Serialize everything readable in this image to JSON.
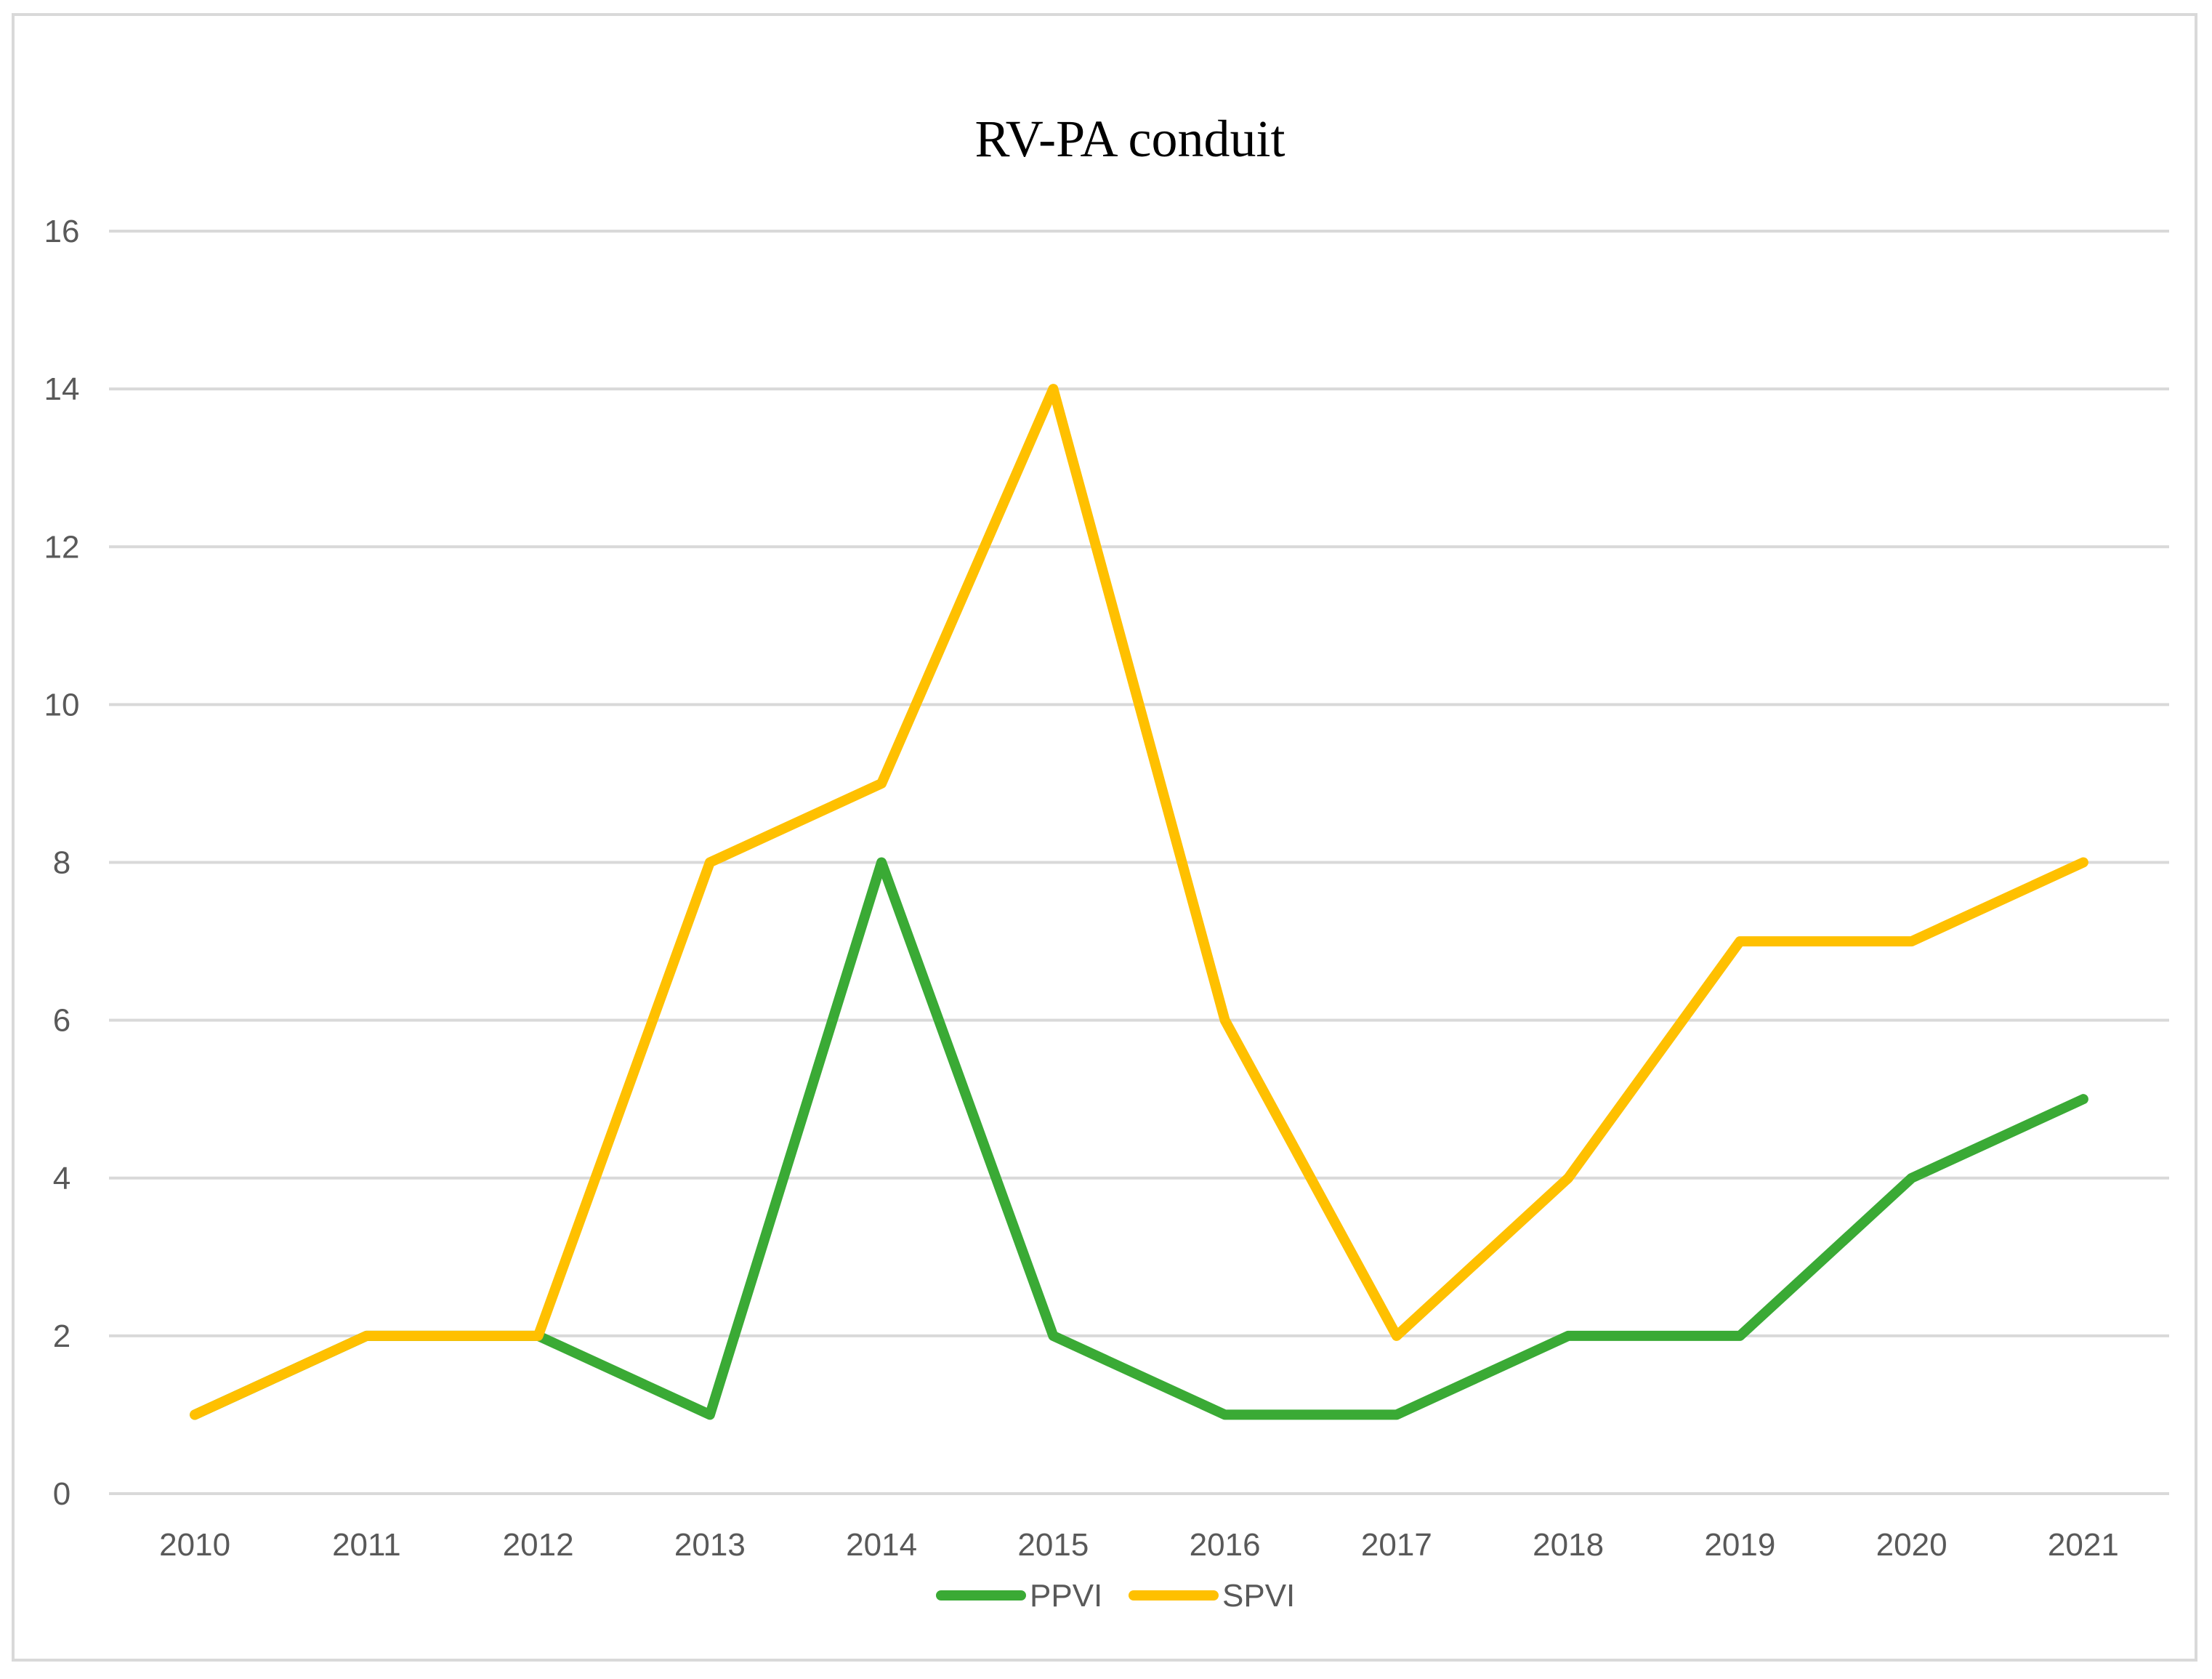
{
  "chart_data": {
    "type": "line",
    "title": "RV-PA conduit",
    "xlabel": "",
    "ylabel": "",
    "categories": [
      "2010",
      "2011",
      "2012",
      "2013",
      "2014",
      "2015",
      "2016",
      "2017",
      "2018",
      "2019",
      "2020",
      "2021"
    ],
    "ylim": [
      0,
      16
    ],
    "yticks": [
      0,
      2,
      4,
      6,
      8,
      10,
      12,
      14,
      16
    ],
    "grid": true,
    "legend_position": "bottom",
    "series": [
      {
        "name": "PPVI",
        "color": "#3aaa35",
        "values": [
          1,
          2,
          2,
          1,
          8,
          2,
          1,
          1,
          2,
          2,
          4,
          5
        ]
      },
      {
        "name": "SPVI",
        "color": "#ffc000",
        "values": [
          1,
          2,
          2,
          8,
          9,
          14,
          6,
          2,
          4,
          7,
          7,
          8
        ]
      }
    ]
  }
}
